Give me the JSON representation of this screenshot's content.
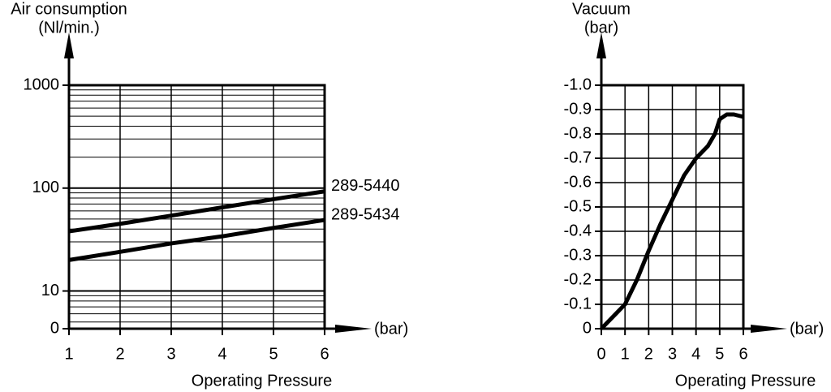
{
  "chart_data": [
    {
      "type": "line",
      "y_label": [
        "Air consumption",
        "(Nl/min.)"
      ],
      "x_label": "Operating Pressure",
      "x_unit": "(bar)",
      "y_scale": "log",
      "ylim": [
        4.3,
        1000
      ],
      "yticks": [
        10,
        100,
        1000
      ],
      "y_floor_label": "0",
      "xlim": [
        1,
        6
      ],
      "xticks": [
        1,
        2,
        3,
        4,
        5,
        6
      ],
      "grid": true,
      "minor_grid": true,
      "x": [
        1,
        2,
        3,
        4,
        5,
        6
      ],
      "series": [
        {
          "name": "289-5440",
          "color": "#000000",
          "values": [
            38,
            45,
            54,
            65,
            78,
            93
          ]
        },
        {
          "name": "289-5434",
          "color": "#000000",
          "values": [
            20,
            24,
            29,
            34,
            41,
            49
          ]
        }
      ]
    },
    {
      "type": "line",
      "y_label": [
        "Vacuum",
        "(bar)"
      ],
      "x_label": "Operating Pressure",
      "x_unit": "(bar)",
      "y_scale": "linear",
      "ylim": [
        0,
        -1.0
      ],
      "yticks": [
        {
          "value": -1.0,
          "label": "-1.0"
        },
        -0.9,
        -0.8,
        -0.7,
        -0.6,
        -0.5,
        -0.4,
        -0.3,
        -0.2,
        -0.1,
        0
      ],
      "xlim": [
        0,
        6
      ],
      "xticks": [
        0,
        1,
        2,
        3,
        4,
        5,
        6
      ],
      "grid": true,
      "x": [
        0,
        0.5,
        1,
        1.5,
        2,
        2.5,
        3,
        3.5,
        4,
        4.5,
        4.8,
        5,
        5.3,
        5.6,
        6
      ],
      "series": [
        {
          "color": "#000000",
          "values": [
            0,
            -0.05,
            -0.1,
            -0.2,
            -0.32,
            -0.43,
            -0.53,
            -0.63,
            -0.7,
            -0.75,
            -0.8,
            -0.86,
            -0.88,
            -0.88,
            -0.87
          ]
        }
      ]
    }
  ]
}
